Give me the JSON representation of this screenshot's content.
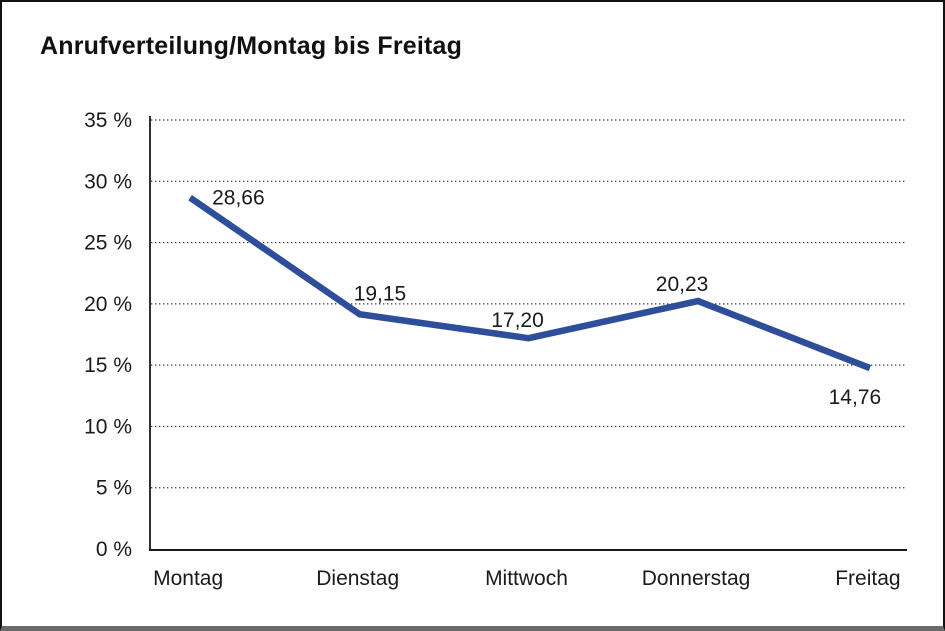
{
  "title": "Anrufverteilung/Montag bis Freitag",
  "chart_data": {
    "type": "line",
    "title": "Anrufverteilung/Montag bis Freitag",
    "categories": [
      "Montag",
      "Dienstag",
      "Mittwoch",
      "Donnerstag",
      "Freitag"
    ],
    "values": [
      28.66,
      19.15,
      17.2,
      20.23,
      14.76
    ],
    "data_labels": [
      "28,66",
      "19,15",
      "17,20",
      "20,23",
      "14,76"
    ],
    "y_tick_labels": [
      "0 %",
      "5 %",
      "10 %",
      "15 %",
      "20 %",
      "25 %",
      "30 %",
      "35 %"
    ],
    "y_ticks": [
      0,
      5,
      10,
      15,
      20,
      25,
      30,
      35
    ],
    "ylim": [
      0,
      35
    ],
    "xlabel": "",
    "ylabel": "",
    "legend_position": "none",
    "grid": "horizontal-dotted",
    "line_color": "#2E4E9B",
    "axis_color": "#1a1a1a",
    "gridline_color": "#3a3a3a",
    "label_color": "#1a1a1a"
  }
}
